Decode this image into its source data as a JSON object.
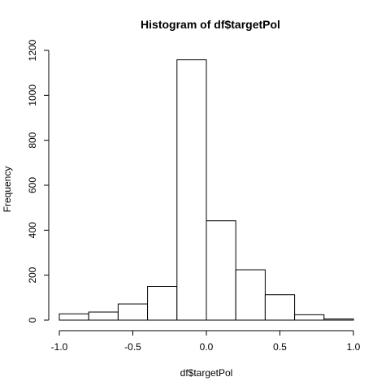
{
  "chart_data": {
    "type": "bar",
    "title": "Histogram of df$targetPol",
    "xlabel": "df$targetPol",
    "ylabel": "Frequency",
    "bins": [
      {
        "x0": -1.0,
        "x1": -0.8,
        "count": 28
      },
      {
        "x0": -0.8,
        "x1": -0.6,
        "count": 36
      },
      {
        "x0": -0.6,
        "x1": -0.4,
        "count": 72
      },
      {
        "x0": -0.4,
        "x1": -0.2,
        "count": 150
      },
      {
        "x0": -0.2,
        "x1": 0.0,
        "count": 1158
      },
      {
        "x0": 0.0,
        "x1": 0.2,
        "count": 442
      },
      {
        "x0": 0.2,
        "x1": 0.4,
        "count": 224
      },
      {
        "x0": 0.4,
        "x1": 0.6,
        "count": 113
      },
      {
        "x0": 0.6,
        "x1": 0.8,
        "count": 24
      },
      {
        "x0": 0.8,
        "x1": 1.0,
        "count": 5
      }
    ],
    "xlim": [
      -1.0,
      1.0
    ],
    "ylim": [
      0,
      1200
    ],
    "xticks": [
      -1.0,
      -0.5,
      0.0,
      0.5,
      1.0
    ],
    "xtick_labels": [
      "-1.0",
      "-0.5",
      "0.0",
      "0.5",
      "1.0"
    ],
    "yticks": [
      0,
      200,
      400,
      600,
      800,
      1000,
      1200
    ],
    "ytick_labels": [
      "0",
      "200",
      "400",
      "600",
      "800",
      "1000",
      "1200"
    ],
    "grid": false,
    "colors": {
      "bar_fill": "#ffffff",
      "bar_stroke": "#000000"
    }
  }
}
